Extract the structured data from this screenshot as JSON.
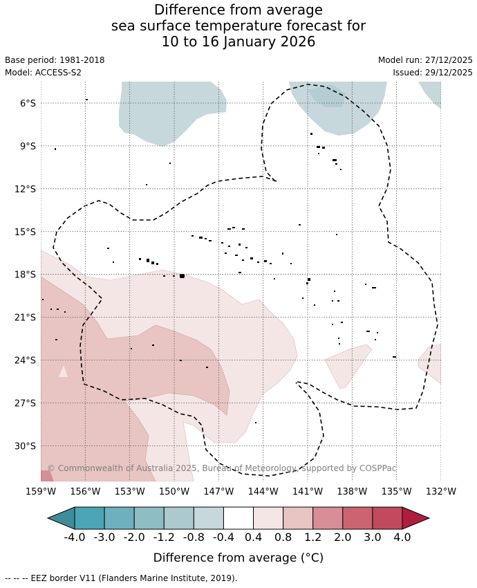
{
  "title": {
    "line1": "Difference from average",
    "line2": "sea surface temperature forecast for",
    "line3": "10 to 16 January 2026"
  },
  "meta": {
    "base_period": "Base period: 1981-2018",
    "model": "Model: ACCESS-S2",
    "model_run": "Model run: 27/12/2025",
    "issued": "Issued: 29/12/2025"
  },
  "map": {
    "lon_range": [
      -159,
      -132
    ],
    "lat_range": [
      -32.5,
      -4.5
    ],
    "lat_ticks": [
      {
        "value": -6,
        "label": "6°S"
      },
      {
        "value": -9,
        "label": "9°S"
      },
      {
        "value": -12,
        "label": "12°S"
      },
      {
        "value": -15,
        "label": "15°S"
      },
      {
        "value": -18,
        "label": "18°S"
      },
      {
        "value": -21,
        "label": "21°S"
      },
      {
        "value": -24,
        "label": "24°S"
      },
      {
        "value": -27,
        "label": "27°S"
      },
      {
        "value": -30,
        "label": "30°S"
      }
    ],
    "lon_ticks": [
      {
        "value": -159,
        "label": "159°W"
      },
      {
        "value": -156,
        "label": "156°W"
      },
      {
        "value": -153,
        "label": "153°W"
      },
      {
        "value": -150,
        "label": "150°W"
      },
      {
        "value": -147,
        "label": "147°W"
      },
      {
        "value": -144,
        "label": "144°W"
      },
      {
        "value": -141,
        "label": "141°W"
      },
      {
        "value": -138,
        "label": "138°W"
      },
      {
        "value": -135,
        "label": "135°W"
      },
      {
        "value": -132,
        "label": "132°W"
      }
    ],
    "copyright": "© Commonwealth of Australia 2025, Bureau of Meteorology, supported by COSPPac",
    "anomaly_regions": [
      {
        "name": "cool-north-central",
        "category": "-0.8 to -0.4"
      },
      {
        "name": "cool-north-east",
        "category": "-0.8 to -0.4"
      },
      {
        "name": "warm-south-west-broad",
        "category": "0.4 to 0.8"
      },
      {
        "name": "warm-south-west-core",
        "category": "0.8 to 1.2"
      },
      {
        "name": "warm-corner",
        "category": "1.2 to 2.0"
      },
      {
        "name": "warm-south-east",
        "category": "0.4 to 0.8"
      }
    ]
  },
  "colorbar": {
    "ticks": [
      "-4.0",
      "-3.0",
      "-2.0",
      "-1.2",
      "-0.8",
      "-0.4",
      "0.4",
      "0.8",
      "1.2",
      "2.0",
      "3.0",
      "4.0"
    ],
    "colors": [
      "#3e8d98",
      "#4aa5b6",
      "#6fb0bf",
      "#8fbdc6",
      "#acc9cf",
      "#c7d8dc",
      "#ffffff",
      "#f4e6e5",
      "#e8c5c2",
      "#d88e96",
      "#cc6470",
      "#c14a5c",
      "#b01e3f"
    ],
    "label_text": "Difference from average",
    "label_unit": "(°C)"
  },
  "footer": {
    "legend_symbol": "--  --  --",
    "legend_text": "EEZ border V11 (Flanders Marine Institute, 2019)."
  }
}
